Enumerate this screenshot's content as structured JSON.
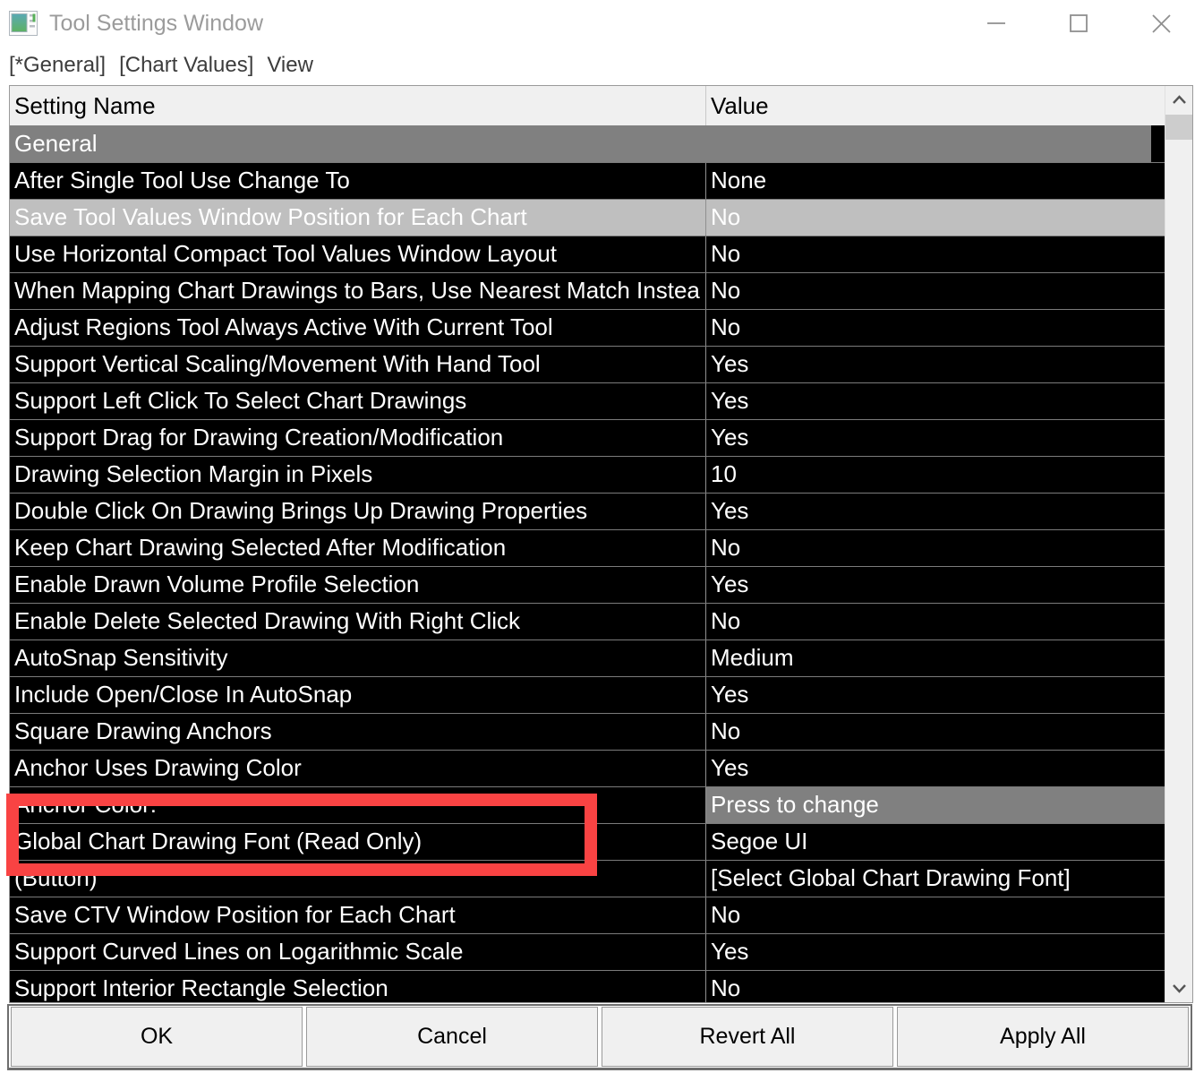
{
  "window": {
    "title": "Tool Settings Window"
  },
  "icons": {
    "app_icon": "chart-window",
    "minimize": "–",
    "maximize": "□",
    "close": "✕",
    "scroll_up": "^",
    "scroll_down": "v"
  },
  "menu": {
    "items": [
      "[*General]",
      "[Chart Values]",
      "View"
    ]
  },
  "table": {
    "columns": [
      "Setting Name",
      "Value"
    ],
    "rows": [
      {
        "type": "section",
        "name": "General"
      },
      {
        "name": "After Single Tool Use Change To",
        "value": "None"
      },
      {
        "name": "Save Tool Values Window Position for Each Chart",
        "value": "No",
        "selected": true
      },
      {
        "name": "Use Horizontal Compact Tool Values Window Layout",
        "value": "No"
      },
      {
        "name": "When Mapping Chart Drawings to Bars, Use Nearest Match Instea",
        "value": "No"
      },
      {
        "name": "Adjust Regions Tool Always Active With Current Tool",
        "value": "No"
      },
      {
        "name": "Support Vertical Scaling/Movement With Hand Tool",
        "value": "Yes"
      },
      {
        "name": "Support Left Click To Select Chart Drawings",
        "value": "Yes"
      },
      {
        "name": "Support Drag for Drawing Creation/Modification",
        "value": "Yes"
      },
      {
        "name": "Drawing Selection Margin in Pixels",
        "value": "10"
      },
      {
        "name": "Double Click On Drawing Brings Up Drawing Properties",
        "value": "Yes"
      },
      {
        "name": "Keep Chart Drawing Selected After Modification",
        "value": "No"
      },
      {
        "name": "Enable Drawn Volume Profile Selection",
        "value": "Yes"
      },
      {
        "name": "Enable Delete Selected Drawing With Right Click",
        "value": "No"
      },
      {
        "name": "AutoSnap Sensitivity",
        "value": "Medium"
      },
      {
        "name": "Include Open/Close In AutoSnap",
        "value": "Yes"
      },
      {
        "name": "Square Drawing Anchors",
        "value": "No"
      },
      {
        "name": "Anchor Uses Drawing Color",
        "value": "Yes"
      },
      {
        "name": "Anchor Color:",
        "value": "Press to change",
        "value_pressable": true
      },
      {
        "name": "Global Chart Drawing Font (Read Only)",
        "value": "Segoe UI"
      },
      {
        "name": "(Button)",
        "value": "[Select Global Chart Drawing Font]"
      },
      {
        "name": "Save CTV Window Position for Each Chart",
        "value": "No"
      },
      {
        "name": "Support Curved Lines on Logarithmic Scale",
        "value": "Yes"
      },
      {
        "name": "Support Interior Rectangle Selection",
        "value": "No"
      }
    ]
  },
  "buttons": [
    "OK",
    "Cancel",
    "Revert All",
    "Apply All"
  ],
  "annotation": {
    "shape": "rectangle",
    "color": "#f94343"
  },
  "colors": {
    "header_bg": "#f0f0f0",
    "row_bg": "#000000",
    "row_text": "#ffffff",
    "section_bg": "#808080",
    "selected_bg": "#bfbfbf",
    "pressable_bg": "#808080",
    "scroll_track": "#f0f0f0",
    "scroll_thumb": "#cdcdcd",
    "button_bg": "#f0f0f0",
    "annotation": "#f94343",
    "title_text": "#9b9b9b",
    "menu_text": "#3c3c3c"
  }
}
